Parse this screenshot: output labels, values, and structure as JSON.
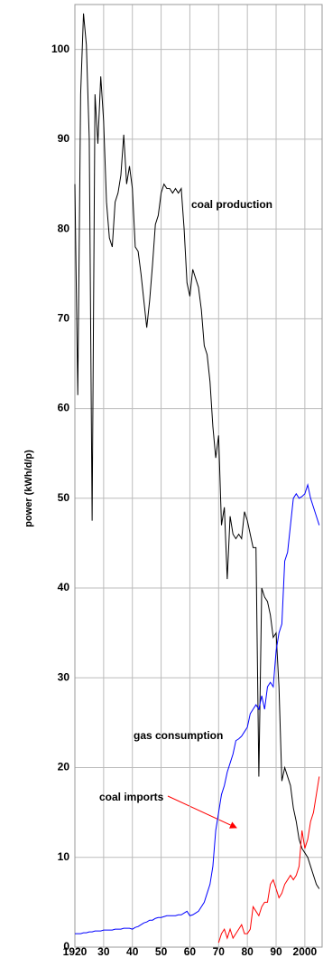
{
  "chart_data": {
    "type": "line",
    "ylabel": "power (kWh/d/p)",
    "x": [
      1920,
      1921,
      1922,
      1923,
      1924,
      1925,
      1926,
      1927,
      1928,
      1929,
      1930,
      1931,
      1932,
      1933,
      1934,
      1935,
      1936,
      1937,
      1938,
      1939,
      1940,
      1941,
      1942,
      1943,
      1944,
      1945,
      1946,
      1947,
      1948,
      1949,
      1950,
      1951,
      1952,
      1953,
      1954,
      1955,
      1956,
      1957,
      1958,
      1959,
      1960,
      1961,
      1962,
      1963,
      1964,
      1965,
      1966,
      1967,
      1968,
      1969,
      1970,
      1971,
      1972,
      1973,
      1974,
      1975,
      1976,
      1977,
      1978,
      1979,
      1980,
      1981,
      1982,
      1983,
      1984,
      1985,
      1986,
      1987,
      1988,
      1989,
      1990,
      1991,
      1992,
      1993,
      1994,
      1995,
      1996,
      1997,
      1998,
      1999,
      2000,
      2001,
      2002,
      2003,
      2004,
      2005
    ],
    "series": [
      {
        "name": "coal production",
        "color": "#000000",
        "values": [
          85,
          61.5,
          95,
          104,
          100.5,
          90,
          47.5,
          95,
          89.5,
          97,
          92,
          83,
          79,
          78,
          83,
          84,
          86,
          90.5,
          85,
          87,
          84.5,
          78,
          77.5,
          75,
          72,
          69,
          72,
          76,
          80.5,
          81.5,
          84,
          85,
          84.5,
          84.5,
          84,
          84.5,
          84,
          84.5,
          80,
          74,
          72.5,
          75.5,
          74.5,
          73.5,
          71,
          67,
          66,
          63,
          58,
          54.5,
          57,
          47,
          49,
          41,
          48,
          46,
          45.5,
          46,
          45.5,
          48.5,
          47.5,
          46,
          44.5,
          44.5,
          19,
          40,
          39,
          38.5,
          37,
          34.5,
          35,
          29,
          18.5,
          20,
          19,
          18,
          15.5,
          14,
          12,
          11,
          10.5,
          10,
          9,
          8,
          7,
          6.5
        ]
      },
      {
        "name": "gas consumption",
        "color": "#0000ff",
        "values": [
          1.5,
          1.5,
          1.5,
          1.6,
          1.6,
          1.7,
          1.7,
          1.8,
          1.8,
          1.8,
          1.9,
          1.9,
          1.9,
          1.9,
          2,
          2,
          2,
          2.1,
          2.1,
          2.1,
          2,
          2.2,
          2.3,
          2.5,
          2.7,
          2.8,
          3,
          3,
          3.2,
          3.3,
          3.3,
          3.4,
          3.5,
          3.5,
          3.5,
          3.5,
          3.6,
          3.6,
          3.8,
          4,
          3.5,
          3.6,
          3.8,
          4,
          4.5,
          5,
          6,
          7,
          9,
          13,
          15,
          17,
          18,
          19.5,
          20.5,
          21.5,
          23,
          23.2,
          23.5,
          24,
          24.5,
          26,
          26.5,
          27,
          26.5,
          28,
          26.5,
          29,
          29.5,
          29,
          33,
          35,
          36,
          43,
          44,
          47,
          50,
          50.5,
          50,
          50.2,
          50.5,
          51.5,
          50,
          49,
          48,
          47
        ]
      },
      {
        "name": "coal imports",
        "color": "#ff0000",
        "values": [
          null,
          null,
          null,
          null,
          null,
          null,
          null,
          null,
          null,
          null,
          null,
          null,
          null,
          null,
          null,
          null,
          null,
          null,
          null,
          null,
          null,
          null,
          null,
          null,
          null,
          null,
          null,
          null,
          null,
          null,
          null,
          null,
          null,
          null,
          null,
          null,
          null,
          null,
          null,
          null,
          null,
          null,
          null,
          null,
          null,
          null,
          null,
          null,
          null,
          null,
          0.5,
          1.5,
          2,
          1,
          2,
          1,
          1.5,
          2,
          2.5,
          1.5,
          1.5,
          2,
          4.5,
          4,
          3.5,
          4.5,
          5,
          5,
          7,
          7.5,
          6.5,
          5.5,
          6,
          7,
          7.5,
          8,
          7.5,
          8,
          9,
          13,
          11,
          12,
          14,
          15,
          17,
          19
        ]
      }
    ],
    "xlim": [
      1920,
      2006
    ],
    "ylim": [
      0,
      105
    ],
    "xticks": [
      {
        "value": 1920,
        "label": "1920"
      },
      {
        "value": 1930,
        "label": "30"
      },
      {
        "value": 1940,
        "label": "40"
      },
      {
        "value": 1950,
        "label": "50"
      },
      {
        "value": 1960,
        "label": "60"
      },
      {
        "value": 1970,
        "label": "70"
      },
      {
        "value": 1980,
        "label": "80"
      },
      {
        "value": 1990,
        "label": "90"
      },
      {
        "value": 2000,
        "label": "2000"
      }
    ],
    "yticks": [
      0,
      10,
      20,
      30,
      40,
      50,
      60,
      70,
      80,
      90,
      100
    ],
    "grid": true
  }
}
